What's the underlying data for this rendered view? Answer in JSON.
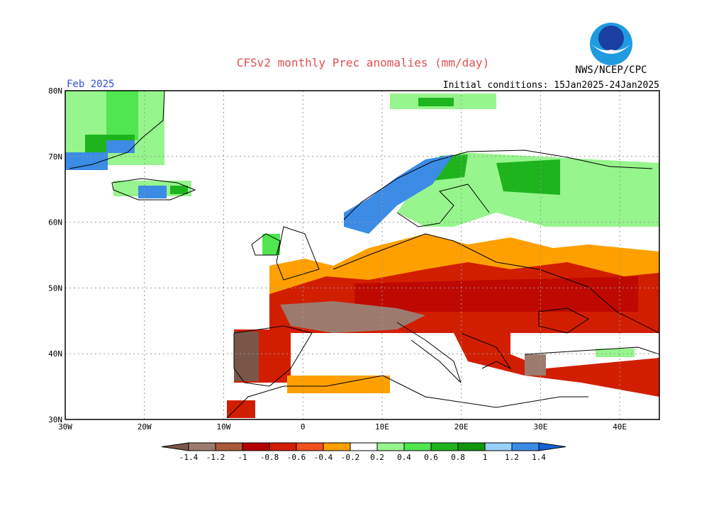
{
  "header": {
    "title": "CFSv2 monthly Prec anomalies (mm/day)",
    "agency": "NWS/NCEP/CPC",
    "month": "Feb 2025",
    "initial_conditions": "Initial conditions: 15Jan2025-24Jan2025"
  },
  "map": {
    "lat_labels": [
      "80N",
      "70N",
      "60N",
      "50N",
      "40N",
      "30N"
    ],
    "lon_labels": [
      "30W",
      "20W",
      "10W",
      "0",
      "10E",
      "20E",
      "30E",
      "40E"
    ]
  },
  "legend": {
    "labels": [
      "-1.4",
      "-1.2",
      "-1",
      "-0.8",
      "-0.6",
      "-0.4",
      "-0.2",
      "0.2",
      "0.4",
      "0.6",
      "0.8",
      "1",
      "1.2",
      "1.4"
    ],
    "colors": [
      "#7a5648",
      "#9c7b6e",
      "#a85a3a",
      "#b40000",
      "#d21e00",
      "#f0501e",
      "#ffa000",
      "#ffffff",
      "#96f58c",
      "#50e650",
      "#1eb41e",
      "#0f960f",
      "#96d2fa",
      "#3c8ce6",
      "#1464d2"
    ]
  }
}
